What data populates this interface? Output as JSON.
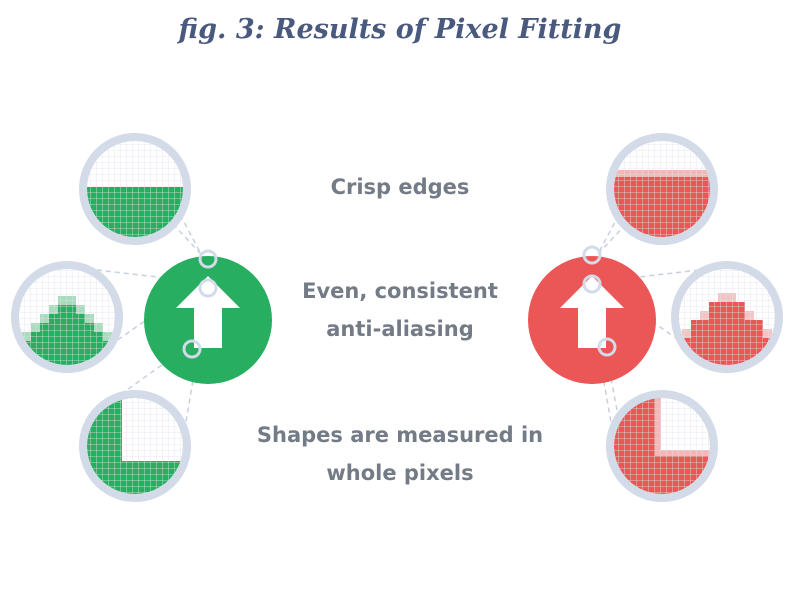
{
  "figure": {
    "title": "fig. 3: Results of Pixel Fitting"
  },
  "captions": {
    "crisp_edges": "Crisp edges",
    "anti_aliasing_line1": "Even, consistent",
    "anti_aliasing_line2": "anti-aliasing",
    "shapes_line1": "Shapes are measured in",
    "shapes_line2": "whole pixels"
  },
  "colors": {
    "title": "#4a5a7e",
    "caption": "#737b87",
    "good": "#27ae60",
    "bad": "#eb5757",
    "lens_ring": "#d3dae8",
    "leader": "#c8d0de",
    "arrow": "#ffffff"
  },
  "icons": {
    "good_example": "arrow-up-icon",
    "bad_example": "arrow-up-icon"
  }
}
